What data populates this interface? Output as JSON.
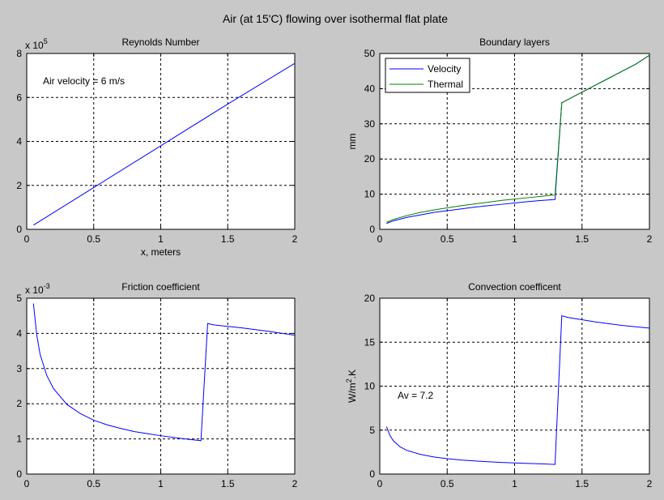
{
  "figure": {
    "title": "Air (at 15'C) flowing over isothermal flat plate"
  },
  "colors": {
    "background": "#c8c8c8",
    "axes_bg": "#ffffff",
    "blue": "#0000ff",
    "green": "#008000",
    "grid": "#000000"
  },
  "chart_data": [
    {
      "id": "reynolds",
      "type": "line",
      "title": "Reynolds Number",
      "xlabel": "x, meters",
      "ylabel": "",
      "xlim": [
        0,
        2
      ],
      "ylim": [
        0,
        8
      ],
      "xticks": [
        0,
        0.5,
        1,
        1.5,
        2
      ],
      "yticks": [
        0,
        2,
        4,
        6,
        8
      ],
      "xtick_labels": [
        "0",
        "0.5",
        "1",
        "1.5",
        "2"
      ],
      "ytick_labels": [
        "0",
        "2",
        "4",
        "6",
        "8"
      ],
      "exponent_base": "x 10",
      "exponent_power": "5",
      "annotation": "Air velocity = 6 m/s",
      "grid": true,
      "series": [
        {
          "color": "#0000ff",
          "x": [
            0.05,
            0.5,
            1,
            1.5,
            2
          ],
          "y": [
            0.19,
            1.9,
            3.8,
            5.7,
            7.55
          ]
        }
      ]
    },
    {
      "id": "boundary",
      "type": "line",
      "title": "Boundary layers",
      "xlabel": "",
      "ylabel": "mm",
      "xlim": [
        0,
        2
      ],
      "ylim": [
        0,
        50
      ],
      "xticks": [
        0,
        0.5,
        1,
        1.5,
        2
      ],
      "yticks": [
        0,
        10,
        20,
        30,
        40,
        50
      ],
      "xtick_labels": [
        "0",
        "0.5",
        "1",
        "1.5",
        "2"
      ],
      "ytick_labels": [
        "0",
        "10",
        "20",
        "30",
        "40",
        "50"
      ],
      "grid": true,
      "legend_position": "top-left",
      "series": [
        {
          "name": "Velocity",
          "color": "#0000ff",
          "x": [
            0.05,
            0.1,
            0.2,
            0.3,
            0.4,
            0.5,
            0.6,
            0.7,
            0.8,
            0.9,
            1.0,
            1.1,
            1.2,
            1.3,
            1.35,
            1.4,
            1.5,
            1.6,
            1.7,
            1.8,
            1.9,
            2.0
          ],
          "y": [
            1.7,
            2.4,
            3.4,
            4.1,
            4.8,
            5.3,
            5.8,
            6.3,
            6.7,
            7.1,
            7.5,
            7.9,
            8.2,
            8.5,
            36.0,
            37.0,
            39.0,
            41.0,
            43.0,
            45.0,
            47.0,
            49.5
          ]
        },
        {
          "name": "Thermal",
          "color": "#008000",
          "x": [
            0.05,
            0.1,
            0.2,
            0.3,
            0.4,
            0.5,
            0.6,
            0.7,
            0.8,
            0.9,
            1.0,
            1.1,
            1.2,
            1.3,
            1.35,
            1.4,
            1.5,
            1.6,
            1.7,
            1.8,
            1.9,
            2.0
          ],
          "y": [
            2.0,
            2.8,
            3.9,
            4.8,
            5.5,
            6.1,
            6.7,
            7.2,
            7.7,
            8.2,
            8.6,
            9.0,
            9.4,
            9.8,
            36.0,
            37.0,
            39.0,
            41.0,
            43.0,
            45.0,
            47.0,
            49.5
          ]
        }
      ]
    },
    {
      "id": "friction",
      "type": "line",
      "title": "Friction coefficient",
      "xlabel": "",
      "ylabel": "",
      "xlim": [
        0,
        2
      ],
      "ylim": [
        0,
        5
      ],
      "xticks": [
        0,
        0.5,
        1,
        1.5,
        2
      ],
      "yticks": [
        0,
        1,
        2,
        3,
        4,
        5
      ],
      "xtick_labels": [
        "0",
        "0.5",
        "1",
        "1.5",
        "2"
      ],
      "ytick_labels": [
        "0",
        "1",
        "2",
        "3",
        "4",
        "5"
      ],
      "exponent_base": "x 10",
      "exponent_power": "-3",
      "grid": true,
      "series": [
        {
          "color": "#0000ff",
          "x": [
            0.05,
            0.075,
            0.1,
            0.15,
            0.2,
            0.3,
            0.4,
            0.5,
            0.6,
            0.7,
            0.8,
            0.9,
            1.0,
            1.1,
            1.2,
            1.3,
            1.35,
            1.4,
            1.6,
            1.8,
            2.0
          ],
          "y": [
            4.85,
            3.95,
            3.4,
            2.8,
            2.43,
            1.98,
            1.72,
            1.53,
            1.4,
            1.3,
            1.21,
            1.15,
            1.09,
            1.04,
            0.99,
            0.95,
            4.28,
            4.24,
            4.16,
            4.06,
            3.95
          ]
        }
      ]
    },
    {
      "id": "convection",
      "type": "line",
      "title": "Convection coefficent",
      "xlabel": "",
      "ylabel_main": "W/m",
      "ylabel_sup": "2",
      "ylabel_tail": ".K",
      "xlim": [
        0,
        2
      ],
      "ylim": [
        0,
        20
      ],
      "xticks": [
        0,
        0.5,
        1,
        1.5,
        2
      ],
      "yticks": [
        0,
        5,
        10,
        15,
        20
      ],
      "xtick_labels": [
        "0",
        "0.5",
        "1",
        "1.5",
        "2"
      ],
      "ytick_labels": [
        "0",
        "5",
        "10",
        "15",
        "20"
      ],
      "annotation": "Av = 7.2",
      "grid": true,
      "series": [
        {
          "color": "#0000ff",
          "x": [
            0.05,
            0.075,
            0.1,
            0.15,
            0.2,
            0.3,
            0.4,
            0.5,
            0.6,
            0.7,
            0.8,
            0.9,
            1.0,
            1.1,
            1.2,
            1.3,
            1.35,
            1.4,
            1.6,
            1.8,
            2.0
          ],
          "y": [
            5.4,
            4.4,
            3.8,
            3.1,
            2.7,
            2.25,
            1.95,
            1.75,
            1.6,
            1.5,
            1.4,
            1.33,
            1.27,
            1.21,
            1.16,
            1.1,
            18.0,
            17.8,
            17.3,
            16.9,
            16.6
          ]
        }
      ]
    }
  ]
}
